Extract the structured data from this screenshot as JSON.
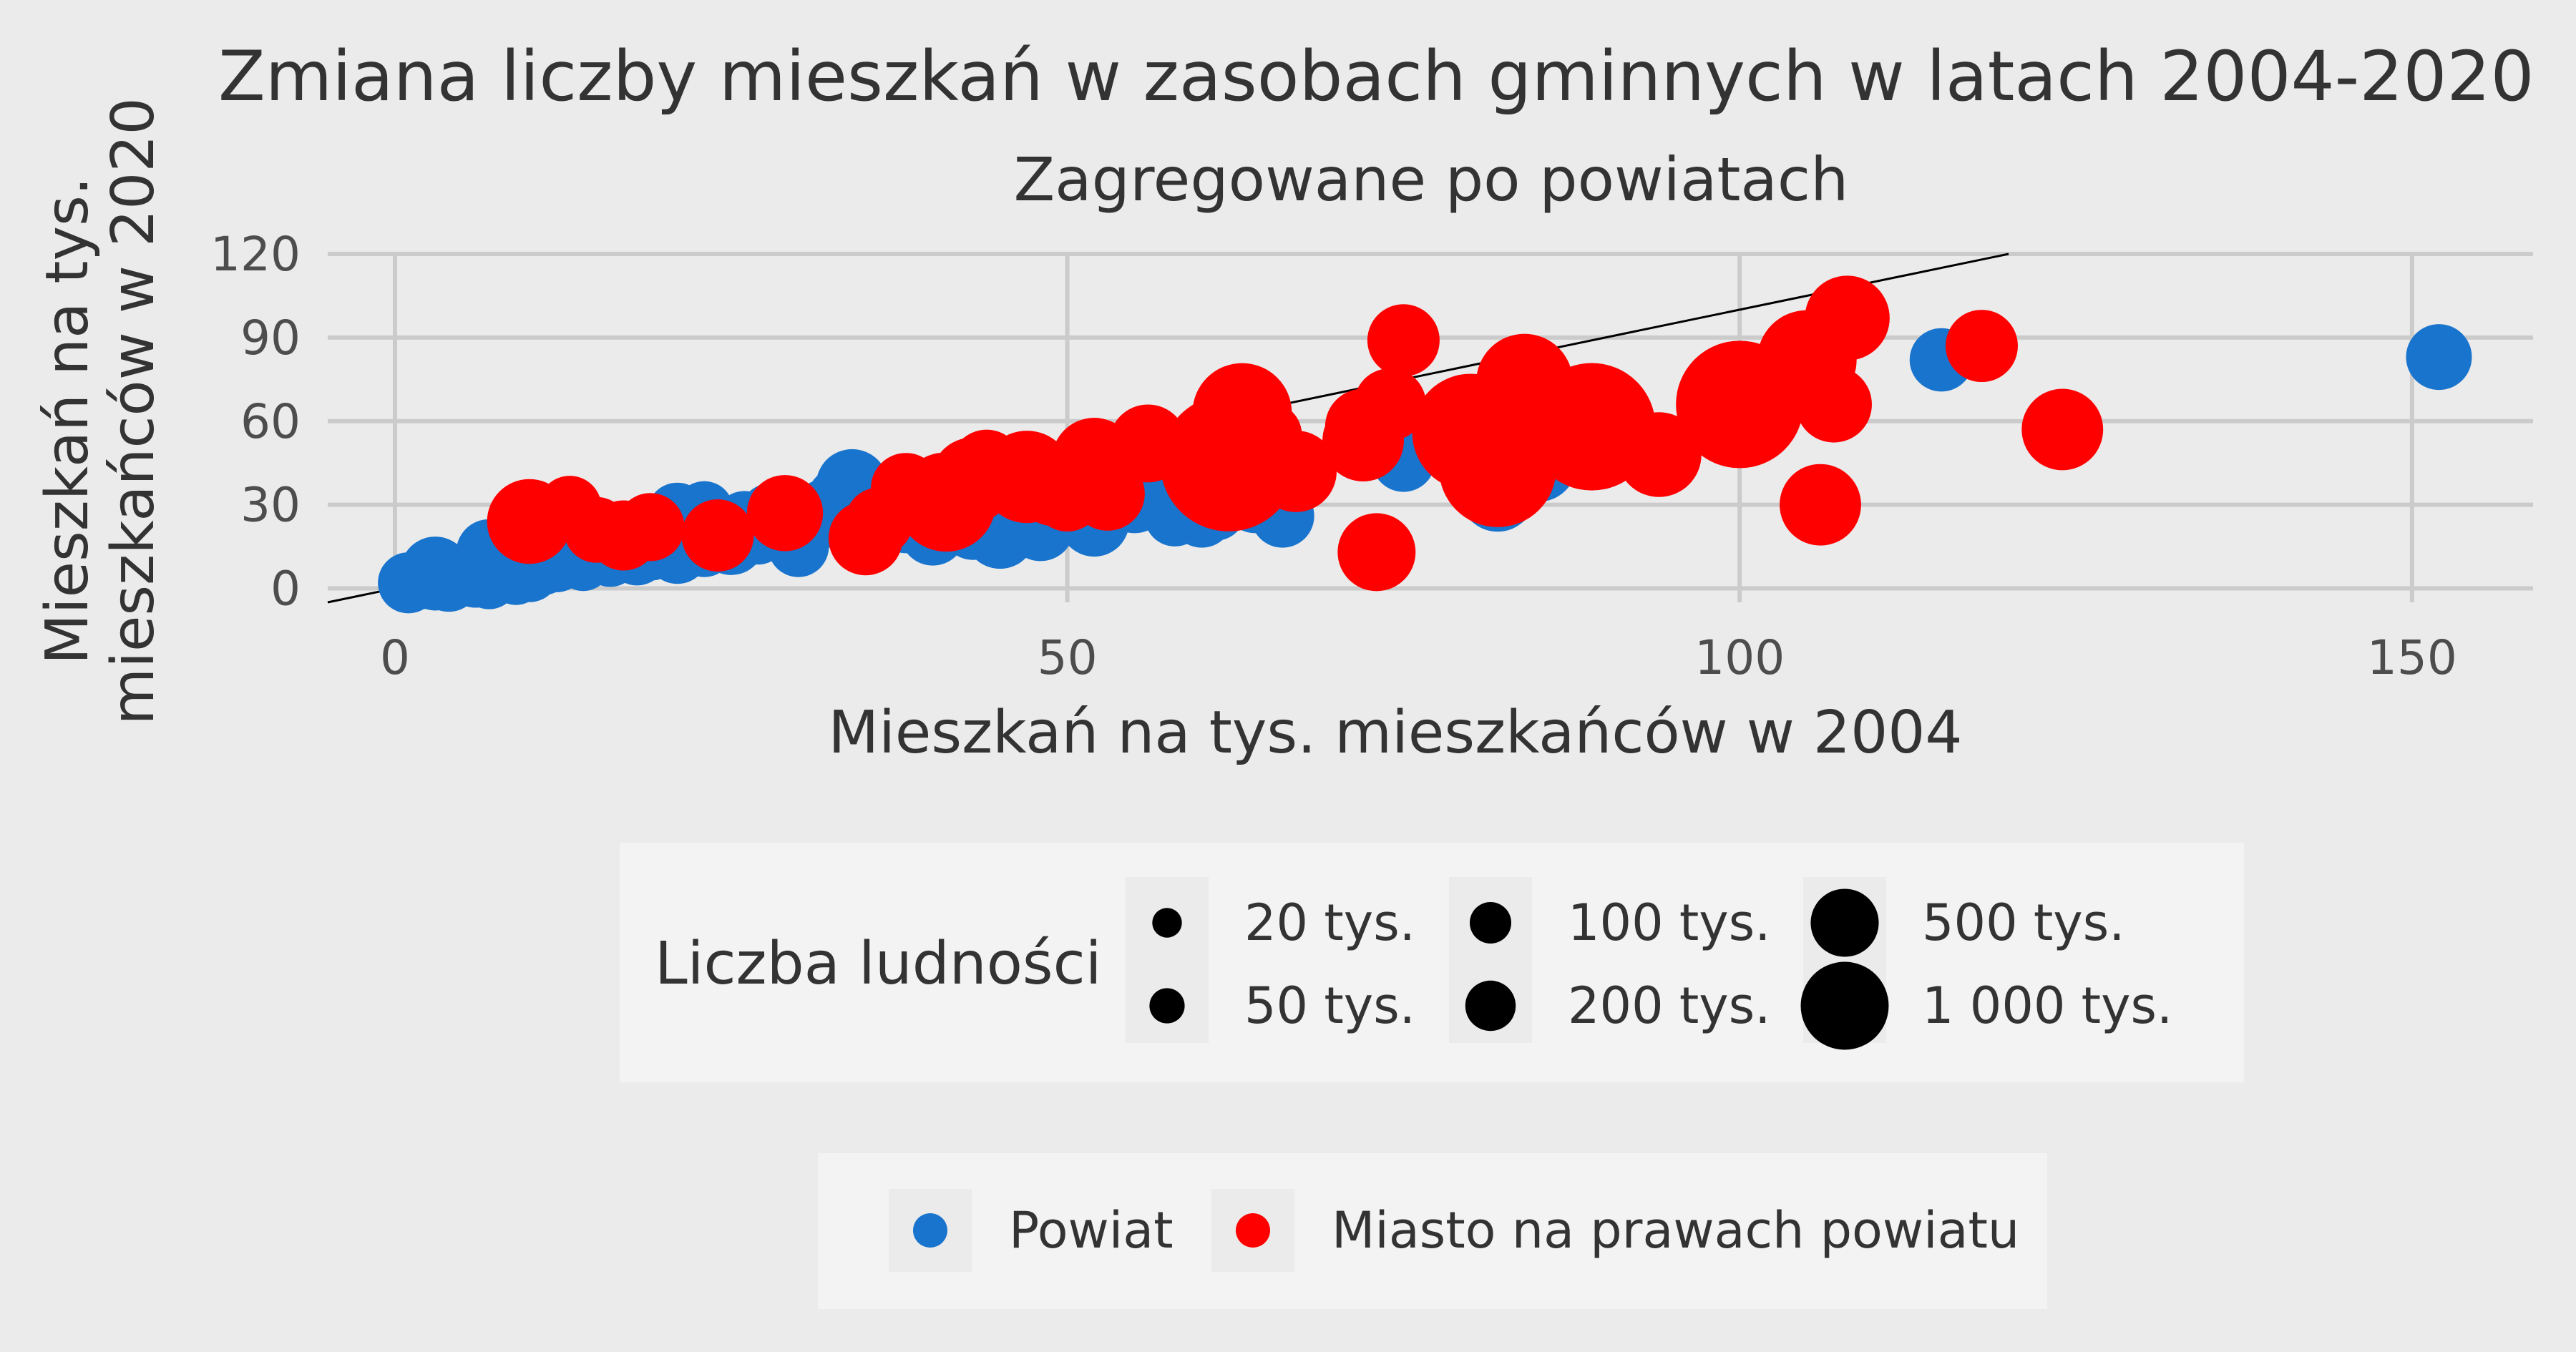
{
  "chart_data": {
    "type": "scatter",
    "title": "Zmiana liczby mieszkań w zasobach gminnych w latach 2004-2020",
    "subtitle": "Zagregowane po powiatach",
    "xlabel": "Mieszkań na tys. mieszkańców w 2004",
    "ylabel_lines": [
      "Mieszkań na tys.",
      "mieszkańców w 2020"
    ],
    "xlim": [
      -5,
      159
    ],
    "ylim": [
      -5,
      120
    ],
    "x_ticks": [
      0,
      50,
      100,
      150
    ],
    "x_tick_labels": [
      "0",
      "50",
      "100",
      "150"
    ],
    "y_ticks": [
      0,
      30,
      60,
      90,
      120
    ],
    "y_tick_labels": [
      "0",
      "30",
      "60",
      "90",
      "120"
    ],
    "grid": true,
    "reference_line": {
      "type": "identity",
      "slope": 1,
      "intercept": 0
    },
    "colors": {
      "Powiat": "#1874cd",
      "Miasto na prawach powiatu": "#ff0000"
    },
    "size_legend": {
      "title": "Liczba ludności",
      "position": "bottom",
      "entries": [
        {
          "label": "20 tys.",
          "value": 20
        },
        {
          "label": "50 tys.",
          "value": 50
        },
        {
          "label": "100 tys.",
          "value": 100
        },
        {
          "label": "200 tys.",
          "value": 200
        },
        {
          "label": "500 tys.",
          "value": 500
        },
        {
          "label": "1 000 tys.",
          "value": 1000
        }
      ]
    },
    "color_legend": {
      "position": "bottom",
      "entries": [
        {
          "label": "Powiat",
          "color": "#1874cd"
        },
        {
          "label": "Miasto na prawach powiatu",
          "color": "#ff0000"
        }
      ]
    },
    "series": [
      {
        "name": "Powiat",
        "color": "#1874cd",
        "points": [
          {
            "x": 1,
            "y": 2,
            "s": 80
          },
          {
            "x": 2,
            "y": 3,
            "s": 70
          },
          {
            "x": 3,
            "y": 2,
            "s": 60
          },
          {
            "x": 3,
            "y": 6,
            "s": 120
          },
          {
            "x": 4,
            "y": 3,
            "s": 90
          },
          {
            "x": 5,
            "y": 5,
            "s": 60
          },
          {
            "x": 6,
            "y": 4,
            "s": 80
          },
          {
            "x": 7,
            "y": 3,
            "s": 70
          },
          {
            "x": 8,
            "y": 6,
            "s": 90
          },
          {
            "x": 9,
            "y": 4,
            "s": 60
          },
          {
            "x": 10,
            "y": 6,
            "s": 80
          },
          {
            "x": 7,
            "y": 13,
            "s": 100
          },
          {
            "x": 11,
            "y": 8,
            "s": 70
          },
          {
            "x": 12,
            "y": 10,
            "s": 90
          },
          {
            "x": 12,
            "y": 22,
            "s": 110
          },
          {
            "x": 13,
            "y": 12,
            "s": 80
          },
          {
            "x": 14,
            "y": 9,
            "s": 60
          },
          {
            "x": 15,
            "y": 14,
            "s": 100
          },
          {
            "x": 16,
            "y": 11,
            "s": 70
          },
          {
            "x": 17,
            "y": 16,
            "s": 90
          },
          {
            "x": 18,
            "y": 12,
            "s": 80
          },
          {
            "x": 19,
            "y": 15,
            "s": 110
          },
          {
            "x": 20,
            "y": 18,
            "s": 70
          },
          {
            "x": 21,
            "y": 27,
            "s": 80
          },
          {
            "x": 21,
            "y": 13,
            "s": 90
          },
          {
            "x": 22,
            "y": 20,
            "s": 100
          },
          {
            "x": 23,
            "y": 15,
            "s": 80
          },
          {
            "x": 23,
            "y": 28,
            "s": 70
          },
          {
            "x": 24,
            "y": 22,
            "s": 90
          },
          {
            "x": 25,
            "y": 17,
            "s": 110
          },
          {
            "x": 26,
            "y": 24,
            "s": 80
          },
          {
            "x": 27,
            "y": 19,
            "s": 70
          },
          {
            "x": 28,
            "y": 26,
            "s": 100
          },
          {
            "x": 29,
            "y": 21,
            "s": 90
          },
          {
            "x": 30,
            "y": 15,
            "s": 80
          },
          {
            "x": 31,
            "y": 23,
            "s": 70
          },
          {
            "x": 32,
            "y": 27,
            "s": 110
          },
          {
            "x": 33,
            "y": 32,
            "s": 90
          },
          {
            "x": 34,
            "y": 37,
            "s": 130
          },
          {
            "x": 35,
            "y": 22,
            "s": 150
          },
          {
            "x": 36,
            "y": 26,
            "s": 100
          },
          {
            "x": 37,
            "y": 29,
            "s": 120
          },
          {
            "x": 38,
            "y": 24,
            "s": 90
          },
          {
            "x": 39,
            "y": 32,
            "s": 80
          },
          {
            "x": 40,
            "y": 20,
            "s": 100
          },
          {
            "x": 41,
            "y": 28,
            "s": 90
          },
          {
            "x": 42,
            "y": 25,
            "s": 80
          },
          {
            "x": 43,
            "y": 22,
            "s": 100
          },
          {
            "x": 44,
            "y": 34,
            "s": 120
          },
          {
            "x": 45,
            "y": 20,
            "s": 130
          },
          {
            "x": 46,
            "y": 31,
            "s": 90
          },
          {
            "x": 48,
            "y": 22,
            "s": 110
          },
          {
            "x": 49,
            "y": 35,
            "s": 100
          },
          {
            "x": 50,
            "y": 28,
            "s": 90
          },
          {
            "x": 52,
            "y": 24,
            "s": 120
          },
          {
            "x": 53,
            "y": 36,
            "s": 80
          },
          {
            "x": 55,
            "y": 32,
            "s": 110
          },
          {
            "x": 57,
            "y": 41,
            "s": 90
          },
          {
            "x": 58,
            "y": 26,
            "s": 80
          },
          {
            "x": 60,
            "y": 26,
            "s": 90
          },
          {
            "x": 61,
            "y": 28,
            "s": 80
          },
          {
            "x": 64,
            "y": 44,
            "s": 100
          },
          {
            "x": 64,
            "y": 32,
            "s": 110
          },
          {
            "x": 66,
            "y": 26,
            "s": 90
          },
          {
            "x": 75,
            "y": 46,
            "s": 90
          },
          {
            "x": 82,
            "y": 34,
            "s": 150
          },
          {
            "x": 83,
            "y": 58,
            "s": 130
          },
          {
            "x": 85,
            "y": 45,
            "s": 160
          },
          {
            "x": 115,
            "y": 82,
            "s": 90
          },
          {
            "x": 152,
            "y": 83,
            "s": 100
          }
        ]
      },
      {
        "name": "Miasto na prawach powiatu",
        "color": "#ff0000",
        "points": [
          {
            "x": 10,
            "y": 24,
            "s": 200
          },
          {
            "x": 13,
            "y": 29,
            "s": 90
          },
          {
            "x": 15,
            "y": 21,
            "s": 100
          },
          {
            "x": 17,
            "y": 19,
            "s": 120
          },
          {
            "x": 19,
            "y": 22,
            "s": 110
          },
          {
            "x": 24,
            "y": 19,
            "s": 130
          },
          {
            "x": 29,
            "y": 27,
            "s": 150
          },
          {
            "x": 35,
            "y": 18,
            "s": 140
          },
          {
            "x": 36,
            "y": 24,
            "s": 110
          },
          {
            "x": 38,
            "y": 36,
            "s": 120
          },
          {
            "x": 41,
            "y": 31,
            "s": 300
          },
          {
            "x": 43,
            "y": 39,
            "s": 200
          },
          {
            "x": 44,
            "y": 44,
            "s": 130
          },
          {
            "x": 47,
            "y": 40,
            "s": 250
          },
          {
            "x": 49,
            "y": 37,
            "s": 180
          },
          {
            "x": 50,
            "y": 33,
            "s": 120
          },
          {
            "x": 52,
            "y": 46,
            "s": 200
          },
          {
            "x": 53,
            "y": 34,
            "s": 140
          },
          {
            "x": 56,
            "y": 52,
            "s": 160
          },
          {
            "x": 60,
            "y": 44,
            "s": 180
          },
          {
            "x": 61,
            "y": 49,
            "s": 300
          },
          {
            "x": 62,
            "y": 45,
            "s": 650
          },
          {
            "x": 63,
            "y": 63,
            "s": 300
          },
          {
            "x": 65,
            "y": 55,
            "s": 100
          },
          {
            "x": 67,
            "y": 42,
            "s": 180
          },
          {
            "x": 72,
            "y": 58,
            "s": 150
          },
          {
            "x": 72,
            "y": 53,
            "s": 180
          },
          {
            "x": 73,
            "y": 13,
            "s": 160
          },
          {
            "x": 74,
            "y": 66,
            "s": 130
          },
          {
            "x": 75,
            "y": 89,
            "s": 130
          },
          {
            "x": 80,
            "y": 56,
            "s": 450
          },
          {
            "x": 81,
            "y": 61,
            "s": 200
          },
          {
            "x": 82,
            "y": 43,
            "s": 450
          },
          {
            "x": 84,
            "y": 74,
            "s": 280
          },
          {
            "x": 89,
            "y": 58,
            "s": 550
          },
          {
            "x": 94,
            "y": 48,
            "s": 200
          },
          {
            "x": 100,
            "y": 66,
            "s": 550
          },
          {
            "x": 105,
            "y": 76,
            "s": 250
          },
          {
            "x": 105,
            "y": 82,
            "s": 300
          },
          {
            "x": 106,
            "y": 30,
            "s": 180
          },
          {
            "x": 107,
            "y": 66,
            "s": 150
          },
          {
            "x": 108,
            "y": 97,
            "s": 200
          },
          {
            "x": 118,
            "y": 87,
            "s": 130
          },
          {
            "x": 124,
            "y": 57,
            "s": 180
          }
        ]
      }
    ]
  }
}
